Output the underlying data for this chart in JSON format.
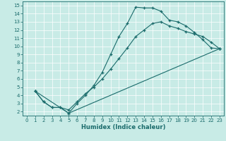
{
  "xlabel": "Humidex (Indice chaleur)",
  "bg_color": "#c8ebe6",
  "line_color": "#1a6b6b",
  "grid_color": "#b0d8d2",
  "xlim_min": -0.5,
  "xlim_max": 23.5,
  "ylim_min": 1.5,
  "ylim_max": 15.5,
  "xticks": [
    0,
    1,
    2,
    3,
    4,
    5,
    6,
    7,
    8,
    9,
    10,
    11,
    12,
    13,
    14,
    15,
    16,
    17,
    18,
    19,
    20,
    21,
    22,
    23
  ],
  "yticks": [
    2,
    3,
    4,
    5,
    6,
    7,
    8,
    9,
    10,
    11,
    12,
    13,
    14,
    15
  ],
  "line1_x": [
    1,
    2,
    3,
    4,
    5,
    6,
    7,
    8,
    9,
    10,
    11,
    12,
    13,
    14,
    15,
    16,
    17,
    18,
    19,
    20,
    21,
    22,
    23
  ],
  "line1_y": [
    4.5,
    3.2,
    2.5,
    2.5,
    1.8,
    3.0,
    4.0,
    5.2,
    6.8,
    9.0,
    11.2,
    12.8,
    14.8,
    14.7,
    14.7,
    14.3,
    13.2,
    13.0,
    12.5,
    11.7,
    10.8,
    9.8,
    9.7
  ],
  "line2_x": [
    1,
    2,
    3,
    4,
    5,
    6,
    7,
    8,
    9,
    10,
    11,
    12,
    13,
    14,
    15,
    16,
    17,
    18,
    19,
    20,
    21,
    22,
    23
  ],
  "line2_y": [
    4.5,
    3.2,
    2.5,
    2.5,
    2.2,
    3.2,
    4.2,
    5.0,
    6.0,
    7.2,
    8.5,
    9.8,
    11.2,
    12.0,
    12.8,
    13.0,
    12.5,
    12.2,
    11.8,
    11.5,
    11.2,
    10.5,
    9.7
  ],
  "line3_x": [
    1,
    5,
    23
  ],
  "line3_y": [
    4.5,
    1.8,
    9.7
  ]
}
